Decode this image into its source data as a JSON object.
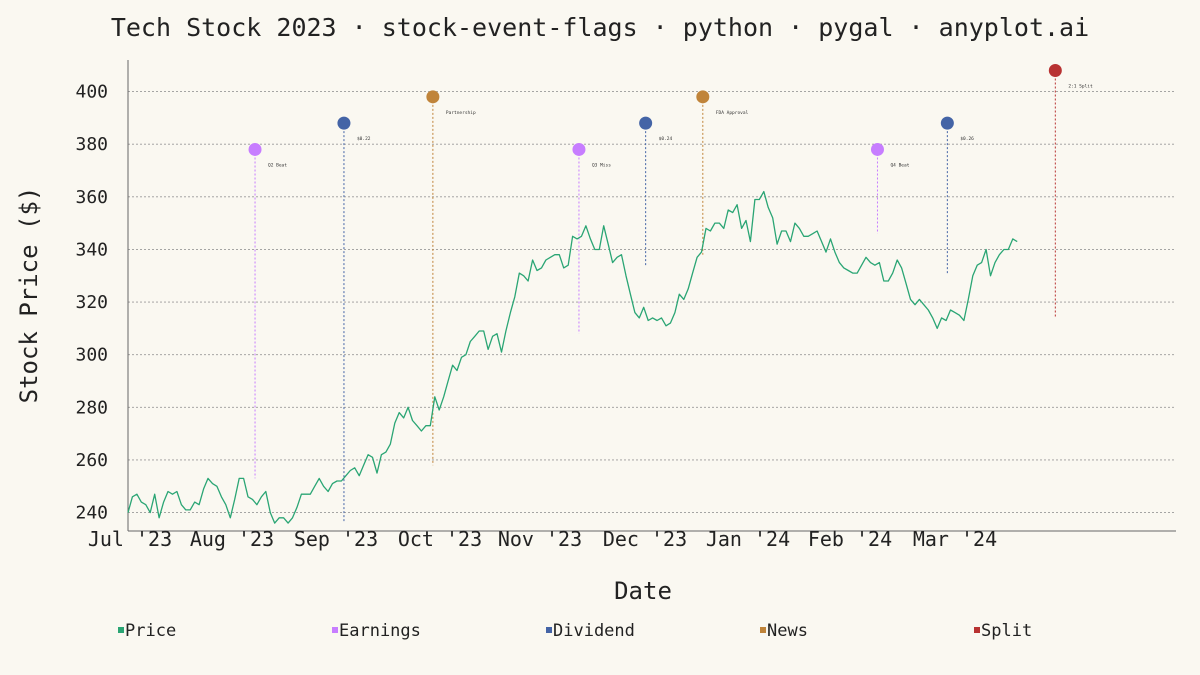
{
  "chart_data": {
    "type": "line",
    "title": "Tech Stock 2023 · stock-event-flags · python · pygal · anyplot.ai",
    "xlabel": "Date",
    "ylabel": "Stock Price ($)",
    "ylim": [
      233,
      412
    ],
    "y_ticks": [
      240,
      260,
      280,
      300,
      320,
      340,
      360,
      380,
      400
    ],
    "x_ticks": [
      "Jul '23",
      "Aug '23",
      "Sep '23",
      "Oct '23",
      "Nov '23",
      "Dec '23",
      "Jan '24",
      "Feb '24",
      "Mar '24"
    ],
    "grid": true,
    "legend_position": "bottom",
    "colors": {
      "price": "#2aa574",
      "earnings": "#c77dff",
      "dividend": "#4464a6",
      "news": "#c0843a",
      "split": "#b83232"
    },
    "legend": [
      {
        "name": "Price",
        "color": "#2aa574"
      },
      {
        "name": "Earnings",
        "color": "#c77dff"
      },
      {
        "name": "Dividend",
        "color": "#4464a6"
      },
      {
        "name": "News",
        "color": "#c0843a"
      },
      {
        "name": "Split",
        "color": "#b83232"
      }
    ],
    "price_series": {
      "name": "Price",
      "start_date": "2023-07-01",
      "step_days": 1.4,
      "values": [
        240,
        246,
        247,
        244,
        243,
        240,
        247,
        238,
        244,
        248,
        247,
        248,
        243,
        241,
        241,
        244,
        243,
        249,
        253,
        251,
        250,
        246,
        243,
        238,
        245,
        253,
        253,
        246,
        245,
        243,
        246,
        248,
        240,
        236,
        238,
        238,
        236,
        238,
        242,
        247,
        247,
        247,
        250,
        253,
        250,
        248,
        251,
        252,
        252,
        254,
        256,
        257,
        254,
        258,
        262,
        261,
        255,
        262,
        263,
        266,
        274,
        278,
        276,
        280,
        275,
        273,
        271,
        273,
        273,
        284,
        279,
        284,
        290,
        296,
        294,
        299,
        300,
        305,
        307,
        309,
        309,
        302,
        307,
        308,
        301,
        309,
        316,
        322,
        331,
        330,
        328,
        336,
        332,
        333,
        336,
        337,
        338,
        338,
        333,
        334,
        345,
        344,
        345,
        349,
        344,
        340,
        340,
        349,
        342,
        335,
        337,
        338,
        330,
        323,
        316,
        314,
        318,
        313,
        314,
        313,
        314,
        311,
        312,
        316,
        323,
        321,
        325,
        331,
        337,
        339,
        348,
        347,
        350,
        350,
        348,
        355,
        354,
        357,
        348,
        351,
        343,
        359,
        359,
        362,
        356,
        352,
        342,
        347,
        347,
        343,
        350,
        348,
        345,
        345,
        346,
        347,
        343,
        339,
        344,
        339,
        335,
        333,
        332,
        331,
        331,
        334,
        337,
        335,
        334,
        335,
        328,
        328,
        331,
        336,
        333,
        327,
        321,
        319,
        321,
        319,
        317,
        314,
        310,
        314,
        313,
        317,
        316,
        315,
        313,
        321,
        330,
        334,
        335,
        340,
        330,
        335,
        338,
        340,
        340,
        344,
        343
      ]
    },
    "events": [
      {
        "type": "Earnings",
        "label": "Q2 Beat",
        "date": "2023-08-10",
        "flag_y": 378,
        "price": 253
      },
      {
        "type": "Dividend",
        "label": "$0.22",
        "date": "2023-09-07",
        "flag_y": 388,
        "price": 236
      },
      {
        "type": "News",
        "label": "Partnership",
        "date": "2023-10-05",
        "flag_y": 398,
        "price": 258
      },
      {
        "type": "Earnings",
        "label": "Q3 Miss",
        "date": "2023-11-20",
        "flag_y": 378,
        "price": 308
      },
      {
        "type": "Dividend",
        "label": "$0.24",
        "date": "2023-12-11",
        "flag_y": 388,
        "price": 334
      },
      {
        "type": "News",
        "label": "FDA Approval",
        "date": "2023-12-29",
        "flag_y": 398,
        "price": 338
      },
      {
        "type": "Earnings",
        "label": "Q4 Beat",
        "date": "2024-02-22",
        "flag_y": 378,
        "price": 346
      },
      {
        "type": "Dividend",
        "label": "$0.26",
        "date": "2024-03-15",
        "flag_y": 388,
        "price": 331
      },
      {
        "type": "Split",
        "label": "2:1 Split",
        "date": "2024-04-18",
        "flag_y": 408,
        "price": 314
      }
    ]
  }
}
